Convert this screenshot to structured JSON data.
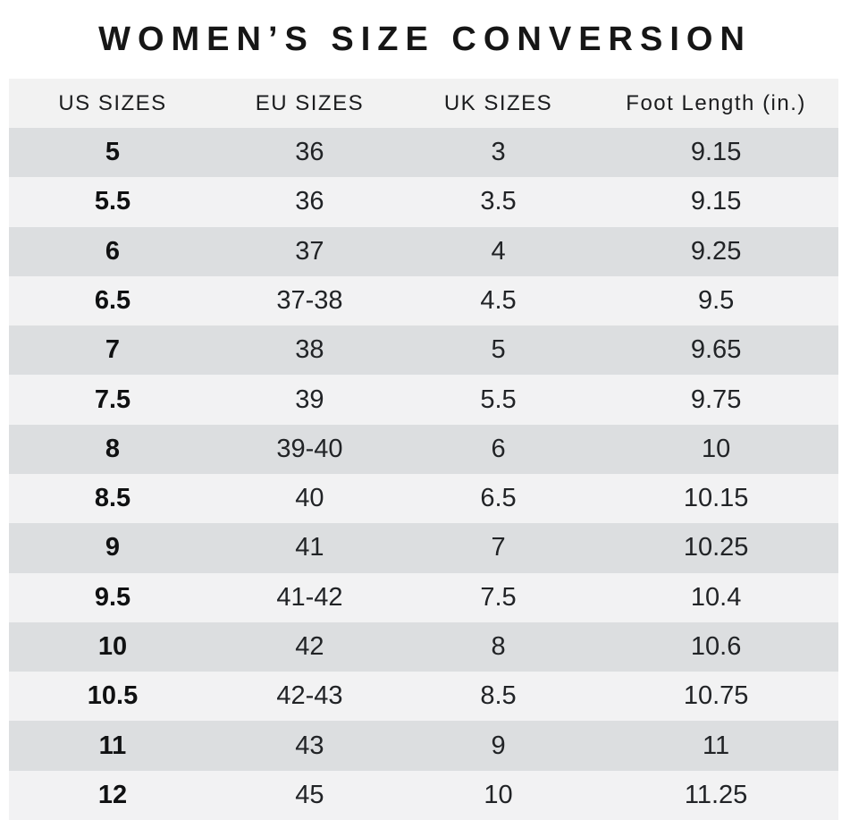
{
  "chart_data": {
    "type": "table",
    "title": "WOMEN’S SIZE CONVERSION",
    "columns": [
      "US SIZES",
      "EU SIZES",
      "UK SIZES",
      "Foot Length (in.)"
    ],
    "rows": [
      [
        "5",
        "36",
        "3",
        "9.15"
      ],
      [
        "5.5",
        "36",
        "3.5",
        "9.15"
      ],
      [
        "6",
        "37",
        "4",
        "9.25"
      ],
      [
        "6.5",
        "37-38",
        "4.5",
        "9.5"
      ],
      [
        "7",
        "38",
        "5",
        "9.65"
      ],
      [
        "7.5",
        "39",
        "5.5",
        "9.75"
      ],
      [
        "8",
        "39-40",
        "6",
        "10"
      ],
      [
        "8.5",
        "40",
        "6.5",
        "10.15"
      ],
      [
        "9",
        "41",
        "7",
        "10.25"
      ],
      [
        "9.5",
        "41-42",
        "7.5",
        "10.4"
      ],
      [
        "10",
        "42",
        "8",
        "10.6"
      ],
      [
        "10.5",
        "42-43",
        "8.5",
        "10.75"
      ],
      [
        "11",
        "43",
        "9",
        "11"
      ],
      [
        "12",
        "45",
        "10",
        "11.25"
      ]
    ],
    "layout": {
      "legend": "none",
      "grid": "off",
      "row_striping": "alternating"
    }
  },
  "colors": {
    "row_dark": "#dcdee0",
    "row_light": "#f2f2f3",
    "header_bg": "#f2f2f2",
    "title_text": "#161616",
    "body_text": "#212326"
  }
}
